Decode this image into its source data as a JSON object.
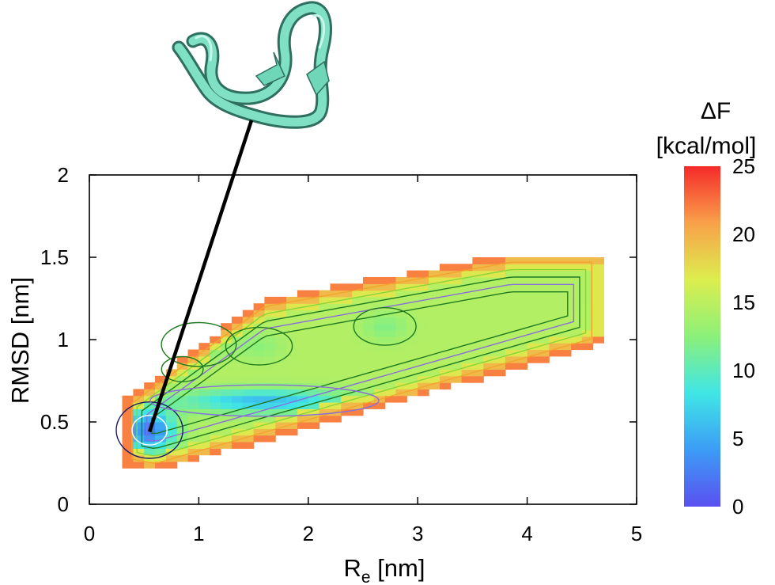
{
  "chart_data": {
    "type": "heatmap",
    "title": "",
    "xlabel": "R",
    "xlabel_sub": "e",
    "xlabel_unit": " [nm]",
    "ylabel": "RMSD [nm]",
    "xlim": [
      0,
      5
    ],
    "ylim": [
      0,
      2
    ],
    "x_ticks": [
      "0",
      "1",
      "2",
      "3",
      "4",
      "5"
    ],
    "y_ticks": [
      "0",
      "0.5",
      "1",
      "1.5",
      "2"
    ],
    "colorbar": {
      "title_line1": "ΔF",
      "title_line2": "[kcal/mol]",
      "range": [
        0,
        25
      ],
      "ticks": [
        "0",
        "5",
        "10",
        "15",
        "20",
        "25"
      ],
      "colors": [
        "#5a50f0",
        "#3c9cf6",
        "#40e6e6",
        "#8cf07a",
        "#dcee4e",
        "#f9a14a",
        "#f52a2a"
      ]
    },
    "annotation": {
      "label": "folded hairpin structure",
      "point": [
        0.55,
        0.44
      ]
    },
    "free_energy_basins": [
      {
        "name": "global minimum",
        "x": 0.55,
        "y": 0.45,
        "value": 2
      },
      {
        "name": "elongated basin",
        "x": 1.6,
        "y": 0.63,
        "value": 6
      },
      {
        "name": "upper-left basin",
        "x": 1.0,
        "y": 0.97,
        "value": 12
      },
      {
        "name": "upper-mid basin",
        "x": 1.55,
        "y": 0.96,
        "value": 12.5
      },
      {
        "name": "small left basin",
        "x": 0.85,
        "y": 0.82,
        "value": 12.5
      },
      {
        "name": "right basin",
        "x": 2.7,
        "y": 1.08,
        "value": 12
      }
    ]
  }
}
